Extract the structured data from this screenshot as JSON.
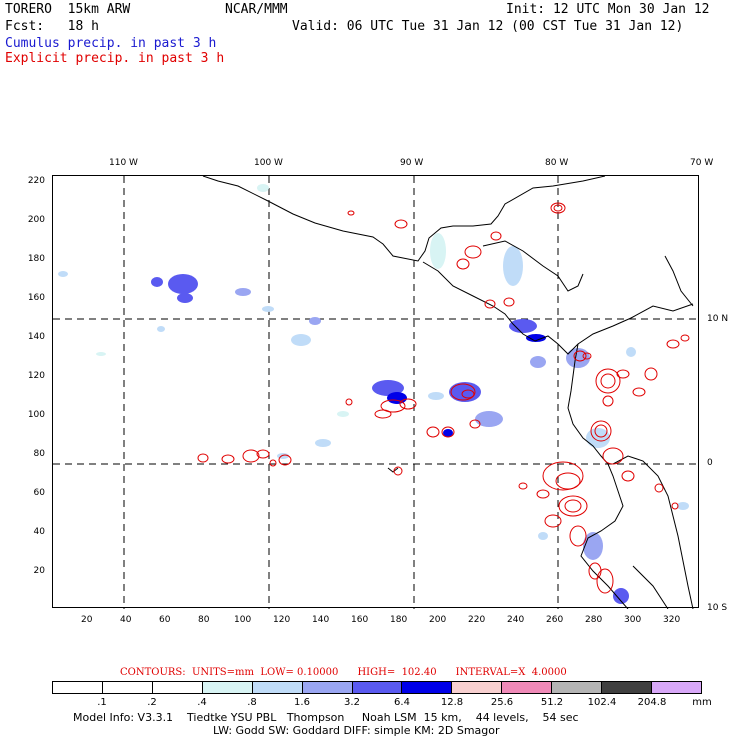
{
  "header": {
    "model": "TORERO  15km ARW",
    "org": "NCAR/MMM",
    "init": "Init: 12 UTC Mon 30 Jan 12",
    "fcst": "Fcst:   18 h",
    "valid": "Valid: 06 UTC Tue 31 Jan 12 (00 CST Tue 31 Jan 12)",
    "cumulus_label": "Cumulus precip. in past 3 h",
    "explicit_label": "Explicit precip. in past 3 h"
  },
  "lon_labels": [
    "110 W",
    "100 W",
    "90 W",
    "80 W",
    "70 W"
  ],
  "lat_labels": [
    "10 N",
    "0",
    "10 S"
  ],
  "x_ticks": [
    "20",
    "40",
    "60",
    "80",
    "100",
    "120",
    "140",
    "160",
    "180",
    "200",
    "220",
    "240",
    "260",
    "280",
    "300",
    "320"
  ],
  "y_ticks": [
    "220",
    "200",
    "180",
    "160",
    "140",
    "120",
    "100",
    "80",
    "60",
    "40",
    "20"
  ],
  "contour_info": "CONTOURS:  UNITS=mm  LOW= 0.10000      HIGH=  102.40      INTERVAL=X  4.0000",
  "legend": {
    "values": [
      ".1",
      ".2",
      ".4",
      ".8",
      "1.6",
      "3.2",
      "6.4",
      "12.8",
      "25.6",
      "51.2",
      "102.4",
      "204.8"
    ],
    "unit": "mm",
    "colors": [
      "#ffffff",
      "#ffffff",
      "#ffffff",
      "#d8f4f4",
      "#c0dcf8",
      "#9aa6f2",
      "#5a5af0",
      "#0000e8",
      "#f8d0d0",
      "#f08ab8",
      "#b4b4b4",
      "#404040",
      "#d8a8f8"
    ]
  },
  "model_info": {
    "line1": "Model Info: V3.3.1    Tiedtke YSU PBL   Thompson     Noah LSM  15 km,    44 levels,    54 sec",
    "line2": "LW: Godd SW: Goddard DIFF: simple KM: 2D Smagor"
  }
}
